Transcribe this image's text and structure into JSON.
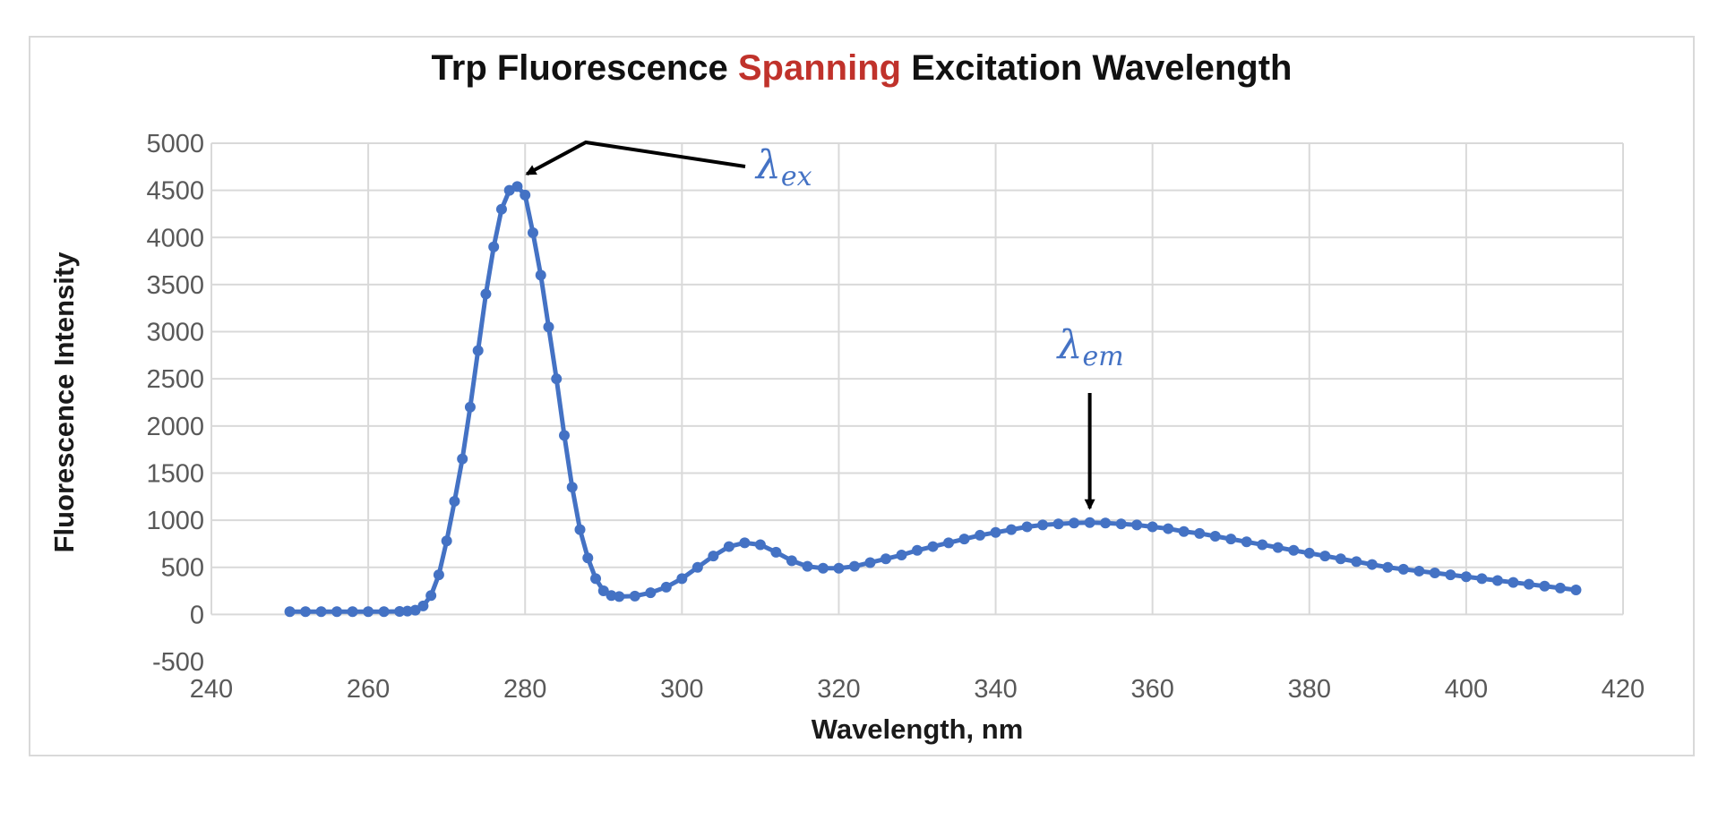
{
  "chart_data": {
    "type": "line",
    "title_parts": [
      {
        "text": "Trp Fluorescence ",
        "color": "#111111"
      },
      {
        "text": "Spanning",
        "color": "#c0322b"
      },
      {
        "text": " Excitation Wavelength",
        "color": "#111111"
      }
    ],
    "xlabel": "Wavelength, nm",
    "ylabel": "Fluorescence Intensity",
    "xlim": [
      240,
      420
    ],
    "ylim": [
      -500,
      5000
    ],
    "x_ticks": [
      "240",
      "260",
      "280",
      "300",
      "320",
      "340",
      "360",
      "380",
      "400",
      "420"
    ],
    "y_ticks": [
      "-500",
      "0",
      "500",
      "1000",
      "1500",
      "2000",
      "2500",
      "3000",
      "3500",
      "4000",
      "4500",
      "5000"
    ],
    "grid": true,
    "series": [
      {
        "color": "#4472c4",
        "marker": "circle",
        "x": [
          250,
          252,
          254,
          256,
          258,
          260,
          262,
          264,
          265,
          266,
          267,
          268,
          269,
          270,
          271,
          272,
          273,
          274,
          275,
          276,
          277,
          278,
          279,
          280,
          281,
          282,
          283,
          284,
          285,
          286,
          287,
          288,
          289,
          290,
          291,
          292,
          294,
          296,
          298,
          300,
          302,
          304,
          306,
          308,
          310,
          312,
          314,
          316,
          318,
          320,
          322,
          324,
          326,
          328,
          330,
          332,
          334,
          336,
          338,
          340,
          342,
          344,
          346,
          348,
          350,
          352,
          354,
          356,
          358,
          360,
          362,
          364,
          366,
          368,
          370,
          372,
          374,
          376,
          378,
          380,
          382,
          384,
          386,
          388,
          390,
          392,
          394,
          396,
          398,
          400,
          402,
          404,
          406,
          408,
          410,
          412,
          414
        ],
        "y": [
          30,
          30,
          30,
          30,
          30,
          30,
          30,
          32,
          35,
          45,
          90,
          200,
          420,
          780,
          1200,
          1650,
          2200,
          2800,
          3400,
          3900,
          4300,
          4500,
          4540,
          4450,
          4050,
          3600,
          3050,
          2500,
          1900,
          1350,
          900,
          600,
          380,
          250,
          200,
          190,
          195,
          230,
          290,
          380,
          500,
          620,
          720,
          760,
          740,
          660,
          570,
          510,
          490,
          490,
          510,
          550,
          590,
          630,
          680,
          720,
          760,
          800,
          840,
          870,
          900,
          930,
          950,
          960,
          970,
          975,
          970,
          960,
          950,
          930,
          910,
          880,
          860,
          830,
          800,
          770,
          740,
          710,
          680,
          650,
          620,
          590,
          560,
          530,
          500,
          480,
          460,
          440,
          420,
          400,
          380,
          360,
          340,
          320,
          300,
          280,
          260
        ]
      }
    ],
    "annotations": [
      {
        "main": "λ",
        "sub": "ex",
        "points_to_x": 280,
        "points_to_y": 4540
      },
      {
        "main": "λ",
        "sub": "em",
        "points_to_x": 352,
        "points_to_y": 975
      }
    ]
  }
}
